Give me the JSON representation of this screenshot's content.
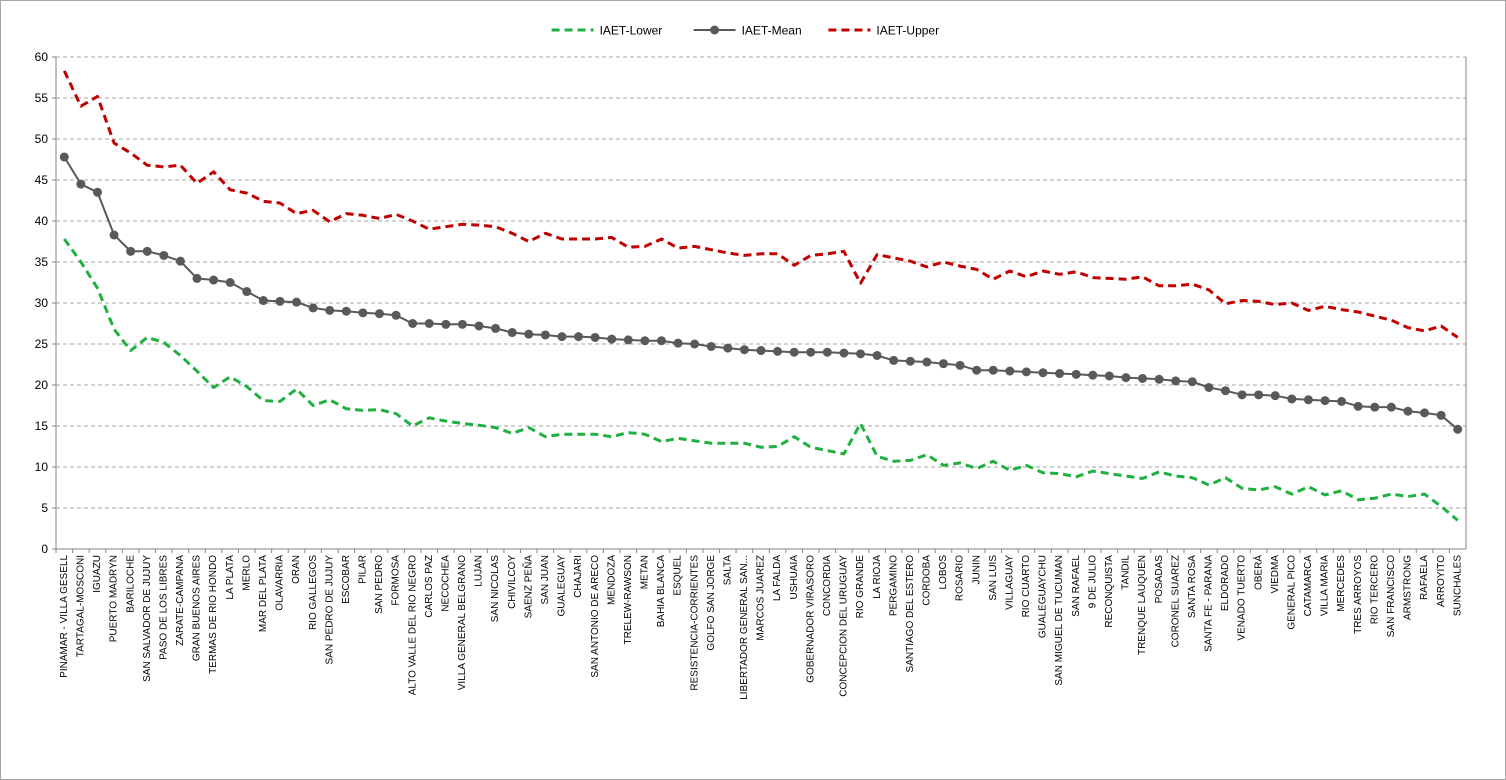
{
  "chart_data": {
    "type": "line",
    "categories": [
      "PINAMAR - VILLA GESELL",
      "TARTAGAL-MOSCONI",
      "IGUAZU",
      "PUERTO MADRYN",
      "BARILOCHE",
      "SAN SALVADOR DE JUJUY",
      "PASO DE LOS LIBRES",
      "ZARATE-CAMPANA",
      "GRAN BUENOS AIRES",
      "TERMAS DE RIO HONDO",
      "LA PLATA",
      "MERLO",
      "MAR DEL PLATA",
      "OLAVARRIA",
      "ORAN",
      "RIO GALLEGOS",
      "SAN PEDRO DE JUJUY",
      "ESCOBAR",
      "PILAR",
      "SAN PEDRO",
      "FORMOSA",
      "ALTO VALLE DEL RIO NEGRO",
      "CARLOS PAZ",
      "NECOCHEA",
      "VILLA GENERAL BELGRANO",
      "LUJAN",
      "SAN NICOLAS",
      "CHIVILCOY",
      "SAENZ PEÑA",
      "SAN JUAN",
      "GUALEGUAY",
      "CHAJARI",
      "SAN ANTONIO DE ARECO",
      "MENDOZA",
      "TRELEW-RAWSON",
      "METAN",
      "BAHIA BLANCA",
      "ESQUEL",
      "RESISTENCIA-CORRIENTES",
      "GOLFO SAN JORGE",
      "SALTA",
      "LIBERTADOR GENERAL SAN...",
      "MARCOS JUAREZ",
      "LA FALDA",
      "USHUAIA",
      "GOBERNADOR VIRASORO",
      "CONCORDIA",
      "CONCEPCION DEL URUGUAY",
      "RIO GRANDE",
      "LA RIOJA",
      "PERGAMINO",
      "SANTIAGO DEL ESTERO",
      "CORDOBA",
      "LOBOS",
      "ROSARIO",
      "JUNIN",
      "SAN LUIS",
      "VILLAGUAY",
      "RIO CUARTO",
      "GUALEGUAYCHU",
      "SAN MIGUEL DE TUCUMAN",
      "SAN RAFAEL",
      "9 DE JULIO",
      "RECONQUISTA",
      "TANDIL",
      "TRENQUE LAUQUEN",
      "POSADAS",
      "CORONEL SUAREZ",
      "SANTA ROSA",
      "SANTA FE - PARANA",
      "ELDORADO",
      "VENADO TUERTO",
      "OBERÁ",
      "VIEDMA",
      "GENERAL PICO",
      "CATAMARCA",
      "VILLA MARIA",
      "MERCEDES",
      "TRES ARROYOS",
      "RIO TERCERO",
      "SAN FRANCISCO",
      "ARMSTRONG",
      "RAFAELA",
      "ARROYITO",
      "SUNCHALES"
    ],
    "series": [
      {
        "name": "IAET-Lower",
        "color": "#1fb040",
        "dashed": true,
        "markers": false,
        "values": [
          37.8,
          35.0,
          31.8,
          26.8,
          24.2,
          25.8,
          25.2,
          23.6,
          21.7,
          19.7,
          21.0,
          19.8,
          18.1,
          18.0,
          19.5,
          17.5,
          18.2,
          17.1,
          16.9,
          17.0,
          16.5,
          15.0,
          16.0,
          15.6,
          15.3,
          15.1,
          14.8,
          14.1,
          14.8,
          13.7,
          14.0,
          14.0,
          14.0,
          13.7,
          14.2,
          14.0,
          13.1,
          13.5,
          13.2,
          12.9,
          12.9,
          12.9,
          12.4,
          12.5,
          13.7,
          12.4,
          12.0,
          11.6,
          15.3,
          11.3,
          10.7,
          10.8,
          11.5,
          10.2,
          10.5,
          9.8,
          10.7,
          9.6,
          10.2,
          9.3,
          9.2,
          8.8,
          9.5,
          9.2,
          8.9,
          8.6,
          9.4,
          8.9,
          8.7,
          7.8,
          8.7,
          7.4,
          7.2,
          7.6,
          6.7,
          7.6,
          6.6,
          7.1,
          6.0,
          6.2,
          6.7,
          6.4,
          6.7,
          5.2,
          3.5
        ]
      },
      {
        "name": "IAET-Mean",
        "color": "#595959",
        "dashed": false,
        "markers": true,
        "values": [
          47.8,
          44.5,
          43.5,
          38.3,
          36.3,
          36.3,
          35.8,
          35.1,
          33.0,
          32.8,
          32.5,
          31.4,
          30.3,
          30.2,
          30.1,
          29.4,
          29.1,
          29.0,
          28.8,
          28.7,
          28.5,
          27.5,
          27.5,
          27.4,
          27.4,
          27.2,
          26.9,
          26.4,
          26.2,
          26.1,
          25.9,
          25.9,
          25.8,
          25.6,
          25.5,
          25.4,
          25.4,
          25.1,
          25.0,
          24.7,
          24.5,
          24.3,
          24.2,
          24.1,
          24.0,
          24.0,
          24.0,
          23.9,
          23.8,
          23.6,
          23.0,
          22.9,
          22.8,
          22.6,
          22.4,
          21.8,
          21.8,
          21.7,
          21.6,
          21.5,
          21.4,
          21.3,
          21.2,
          21.1,
          20.9,
          20.8,
          20.7,
          20.5,
          20.4,
          19.7,
          19.3,
          18.8,
          18.8,
          18.7,
          18.3,
          18.2,
          18.1,
          18.0,
          17.4,
          17.3,
          17.3,
          16.8,
          16.6,
          16.3,
          14.6
        ]
      },
      {
        "name": "IAET-Upper",
        "color": "#c00000",
        "dashed": true,
        "markers": false,
        "values": [
          58.3,
          54.0,
          55.2,
          49.5,
          48.3,
          46.8,
          46.6,
          46.8,
          44.6,
          46.0,
          43.8,
          43.4,
          42.4,
          42.2,
          40.9,
          41.3,
          39.9,
          40.9,
          40.7,
          40.3,
          40.8,
          40.0,
          39.0,
          39.3,
          39.6,
          39.5,
          39.3,
          38.5,
          37.5,
          38.5,
          37.8,
          37.8,
          37.8,
          38.0,
          36.8,
          36.9,
          37.8,
          36.7,
          36.9,
          36.5,
          36.1,
          35.8,
          36.0,
          36.0,
          34.6,
          35.8,
          36.0,
          36.3,
          32.4,
          35.9,
          35.5,
          35.1,
          34.4,
          35.0,
          34.5,
          34.1,
          32.9,
          33.9,
          33.2,
          33.9,
          33.5,
          33.8,
          33.1,
          33.0,
          32.9,
          33.2,
          32.1,
          32.1,
          32.3,
          31.6,
          29.9,
          30.3,
          30.2,
          29.8,
          30.0,
          29.1,
          29.6,
          29.2,
          28.9,
          28.4,
          27.9,
          27.0,
          26.6,
          27.2,
          25.8
        ]
      }
    ],
    "ylim": [
      0,
      60
    ],
    "yticks": [
      0,
      5,
      10,
      15,
      20,
      25,
      30,
      35,
      40,
      45,
      50,
      55,
      60
    ],
    "grid": true,
    "legend": "top"
  }
}
